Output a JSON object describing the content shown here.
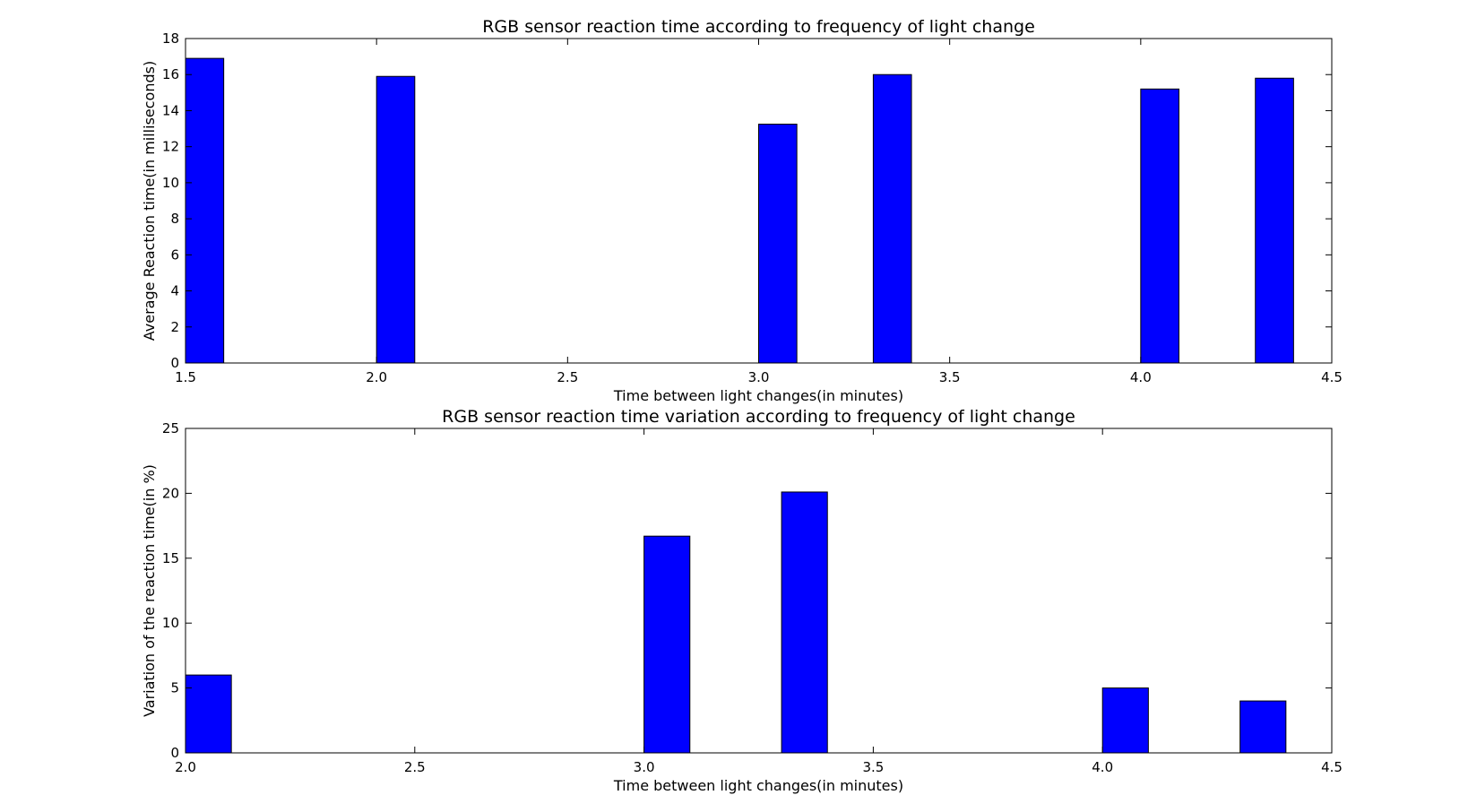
{
  "chart_data": [
    {
      "type": "bar",
      "title": "RGB sensor reaction time according to frequency of light change",
      "xlabel": "Time between light changes(in minutes)",
      "ylabel": "Average Reaction time(in milliseconds)",
      "xlim": [
        1.5,
        4.5
      ],
      "ylim": [
        0,
        18
      ],
      "xticks": [
        "1.5",
        "2.0",
        "2.5",
        "3.0",
        "3.5",
        "4.0",
        "4.5"
      ],
      "yticks": [
        "0",
        "2",
        "4",
        "6",
        "8",
        "10",
        "12",
        "14",
        "16",
        "18"
      ],
      "bar_width": 0.1,
      "bar_color": "#0000ff",
      "grid": false,
      "x": [
        1.5,
        2.0,
        3.0,
        3.3,
        4.0,
        4.3
      ],
      "values": [
        16.9,
        15.9,
        13.25,
        16.0,
        15.2,
        15.8
      ]
    },
    {
      "type": "bar",
      "title": "RGB sensor reaction time variation according to frequency of light change",
      "xlabel": "Time between light changes(in minutes)",
      "ylabel": "Variation of the reaction time(in %)",
      "xlim": [
        2.0,
        4.5
      ],
      "ylim": [
        0,
        25
      ],
      "xticks": [
        "2.0",
        "2.5",
        "3.0",
        "3.5",
        "4.0",
        "4.5"
      ],
      "yticks": [
        "0",
        "5",
        "10",
        "15",
        "20",
        "25"
      ],
      "bar_width": 0.1,
      "bar_color": "#0000ff",
      "grid": false,
      "x": [
        2.0,
        3.0,
        3.3,
        4.0,
        4.3
      ],
      "values": [
        6.0,
        16.7,
        20.1,
        5.0,
        4.0
      ]
    }
  ]
}
